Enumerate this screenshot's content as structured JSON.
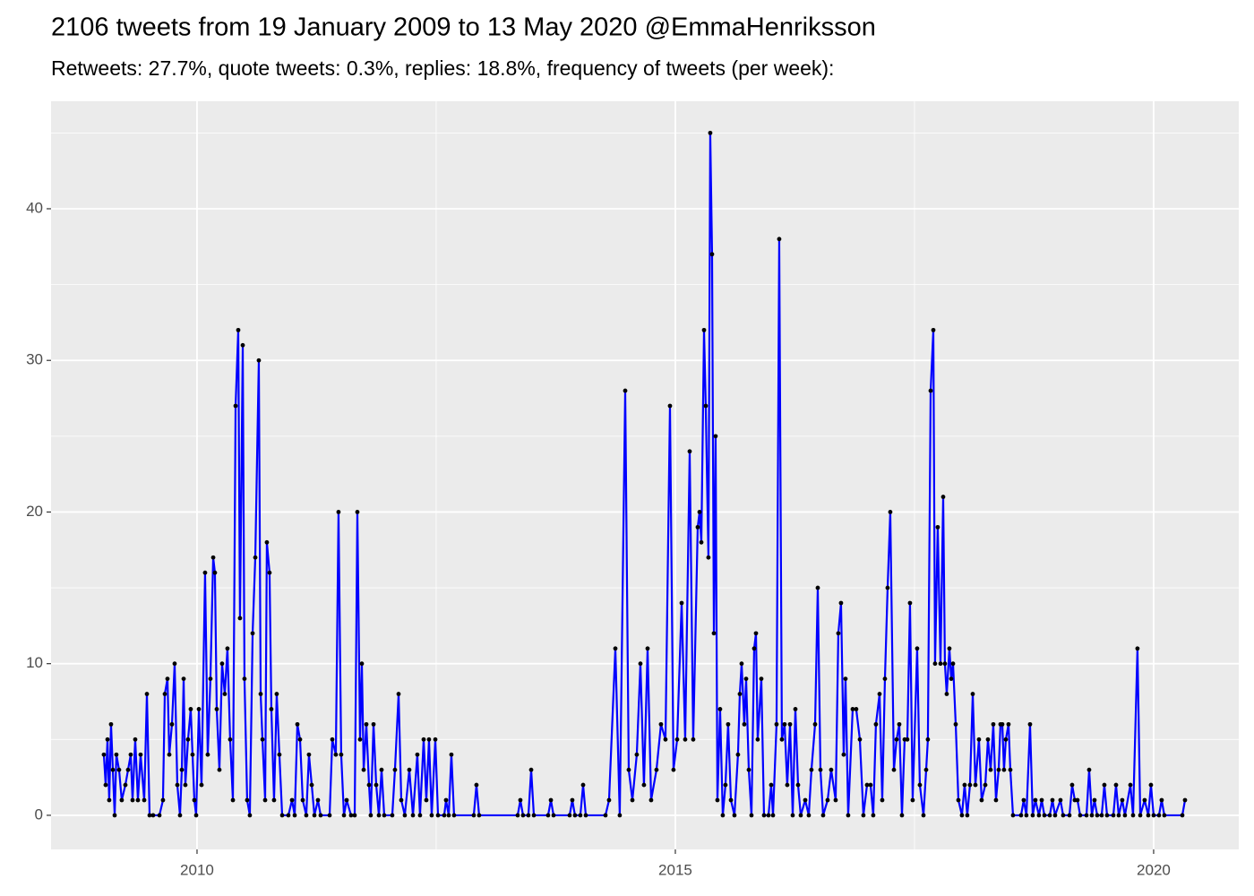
{
  "chart_data": {
    "type": "line",
    "title": "2106 tweets from 19 January 2009 to 13 May 2020 @EmmaHenriksson",
    "subtitle": "Retweets: 27.7%, quote tweets: 0.3%, replies: 18.8%, frequency of tweets (per week):",
    "xlim": [
      2008.474,
      2020.89
    ],
    "xticks": [
      2010,
      2015,
      2020
    ],
    "ylim": [
      -2.25,
      47.09
    ],
    "yticks": [
      0,
      10,
      20,
      30,
      40
    ],
    "grid": true,
    "background": "#ebebeb",
    "marker_color": "#000000",
    "x": [
      2009.026,
      2009.045,
      2009.064,
      2009.082,
      2009.101,
      2009.12,
      2009.139,
      2009.157,
      2009.185,
      2009.213,
      2009.251,
      2009.279,
      2009.307,
      2009.326,
      2009.354,
      2009.382,
      2009.41,
      2009.448,
      2009.476,
      2009.504,
      2009.541,
      2009.607,
      2009.644,
      2009.663,
      2009.691,
      2009.71,
      2009.738,
      2009.766,
      2009.794,
      2009.822,
      2009.841,
      2009.86,
      2009.878,
      2009.906,
      2009.934,
      2009.953,
      2009.972,
      2009.991,
      2010.019,
      2010.047,
      2010.084,
      2010.112,
      2010.14,
      2010.169,
      2010.187,
      2010.206,
      2010.234,
      2010.262,
      2010.29,
      2010.318,
      2010.346,
      2010.375,
      2010.403,
      2010.431,
      2010.449,
      2010.478,
      2010.496,
      2010.524,
      2010.552,
      2010.581,
      2010.609,
      2010.646,
      2010.665,
      2010.684,
      2010.712,
      2010.73,
      2010.758,
      2010.777,
      2010.805,
      2010.833,
      2010.861,
      2010.89,
      2010.955,
      2010.993,
      2011.021,
      2011.049,
      2011.077,
      2011.105,
      2011.142,
      2011.17,
      2011.199,
      2011.227,
      2011.264,
      2011.292,
      2011.386,
      2011.414,
      2011.451,
      2011.479,
      2011.507,
      2011.536,
      2011.564,
      2011.61,
      2011.648,
      2011.676,
      2011.704,
      2011.723,
      2011.742,
      2011.77,
      2011.798,
      2011.816,
      2011.845,
      2011.873,
      2011.901,
      2011.929,
      2011.957,
      2012.041,
      2012.069,
      2012.107,
      2012.135,
      2012.172,
      2012.219,
      2012.257,
      2012.303,
      2012.331,
      2012.369,
      2012.397,
      2012.425,
      2012.453,
      2012.491,
      2012.519,
      2012.584,
      2012.603,
      2012.631,
      2012.659,
      2012.687,
      2012.893,
      2012.921,
      2012.949,
      2013.352,
      2013.38,
      2013.408,
      2013.464,
      2013.493,
      2013.521,
      2013.67,
      2013.699,
      2013.727,
      2013.895,
      2013.923,
      2013.951,
      2014.007,
      2014.036,
      2014.064,
      2014.27,
      2014.307,
      2014.373,
      2014.419,
      2014.476,
      2014.513,
      2014.551,
      2014.597,
      2014.635,
      2014.672,
      2014.71,
      2014.747,
      2014.803,
      2014.85,
      2014.897,
      2014.944,
      2014.981,
      2015.019,
      2015.066,
      2015.103,
      2015.15,
      2015.187,
      2015.234,
      2015.253,
      2015.272,
      2015.3,
      2015.318,
      2015.346,
      2015.365,
      2015.384,
      2015.403,
      2015.421,
      2015.44,
      2015.468,
      2015.496,
      2015.524,
      2015.552,
      2015.581,
      2015.618,
      2015.655,
      2015.674,
      2015.693,
      2015.721,
      2015.74,
      2015.768,
      2015.796,
      2015.824,
      2015.843,
      2015.861,
      2015.899,
      2015.927,
      2015.974,
      2016.002,
      2016.021,
      2016.058,
      2016.086,
      2016.114,
      2016.142,
      2016.17,
      2016.199,
      2016.227,
      2016.255,
      2016.283,
      2016.311,
      2016.358,
      2016.395,
      2016.423,
      2016.461,
      2016.489,
      2016.517,
      2016.545,
      2016.592,
      2016.629,
      2016.676,
      2016.704,
      2016.732,
      2016.76,
      2016.779,
      2016.807,
      2016.854,
      2016.891,
      2016.929,
      2016.966,
      2017.004,
      2017.041,
      2017.069,
      2017.097,
      2017.135,
      2017.163,
      2017.191,
      2017.219,
      2017.247,
      2017.285,
      2017.313,
      2017.341,
      2017.369,
      2017.397,
      2017.425,
      2017.453,
      2017.481,
      2017.528,
      2017.556,
      2017.594,
      2017.622,
      2017.64,
      2017.669,
      2017.697,
      2017.715,
      2017.743,
      2017.772,
      2017.8,
      2017.818,
      2017.837,
      2017.865,
      2017.884,
      2017.903,
      2017.931,
      2017.959,
      2017.996,
      2018.024,
      2018.052,
      2018.08,
      2018.109,
      2018.137,
      2018.174,
      2018.202,
      2018.24,
      2018.268,
      2018.296,
      2018.324,
      2018.352,
      2018.38,
      2018.399,
      2018.418,
      2018.436,
      2018.455,
      2018.483,
      2018.502,
      2018.53,
      2018.614,
      2018.642,
      2018.67,
      2018.708,
      2018.736,
      2018.764,
      2018.801,
      2018.83,
      2018.858,
      2018.914,
      2018.942,
      2018.97,
      2019.026,
      2019.054,
      2019.12,
      2019.148,
      2019.176,
      2019.204,
      2019.232,
      2019.298,
      2019.326,
      2019.354,
      2019.382,
      2019.41,
      2019.457,
      2019.485,
      2019.513,
      2019.579,
      2019.607,
      2019.635,
      2019.672,
      2019.7,
      2019.757,
      2019.785,
      2019.831,
      2019.86,
      2019.906,
      2019.944,
      2019.972,
      2020.0,
      2020.056,
      2020.084,
      2020.112,
      2020.3,
      2020.328
    ],
    "series": [
      {
        "color": "#0000ff",
        "values": [
          4,
          2,
          5,
          1,
          6,
          3,
          0,
          4,
          3,
          1,
          2,
          3,
          4,
          1,
          5,
          1,
          4,
          1,
          8,
          0,
          0,
          0,
          1,
          8,
          9,
          4,
          6,
          10,
          2,
          0,
          3,
          9,
          2,
          5,
          7,
          4,
          1,
          0,
          7,
          2,
          16,
          4,
          9,
          17,
          16,
          7,
          3,
          10,
          8,
          11,
          5,
          1,
          27,
          32,
          13,
          31,
          9,
          1,
          0,
          12,
          17,
          30,
          8,
          5,
          1,
          18,
          16,
          7,
          1,
          8,
          4,
          0,
          0,
          1,
          0,
          6,
          5,
          1,
          0,
          4,
          2,
          0,
          1,
          0,
          0,
          5,
          4,
          20,
          4,
          0,
          1,
          0,
          0,
          20,
          5,
          10,
          3,
          6,
          2,
          0,
          6,
          2,
          0,
          3,
          0,
          0,
          3,
          8,
          1,
          0,
          3,
          0,
          4,
          0,
          5,
          1,
          5,
          0,
          5,
          0,
          0,
          1,
          0,
          4,
          0,
          0,
          2,
          0,
          0,
          1,
          0,
          0,
          3,
          0,
          0,
          1,
          0,
          0,
          1,
          0,
          0,
          2,
          0,
          0,
          1,
          11,
          0,
          28,
          3,
          1,
          4,
          10,
          2,
          11,
          1,
          3,
          6,
          5,
          27,
          3,
          5,
          14,
          5,
          24,
          5,
          19,
          20,
          18,
          32,
          27,
          17,
          45,
          37,
          12,
          25,
          1,
          7,
          0,
          2,
          6,
          1,
          0,
          4,
          8,
          10,
          6,
          9,
          3,
          0,
          11,
          12,
          5,
          9,
          0,
          0,
          2,
          0,
          6,
          38,
          5,
          6,
          2,
          6,
          0,
          7,
          2,
          0,
          1,
          0,
          3,
          6,
          15,
          3,
          0,
          1,
          3,
          1,
          12,
          14,
          4,
          9,
          0,
          7,
          7,
          5,
          0,
          2,
          2,
          0,
          6,
          8,
          1,
          9,
          15,
          20,
          3,
          5,
          6,
          0,
          5,
          5,
          14,
          1,
          11,
          2,
          0,
          3,
          5,
          28,
          32,
          10,
          19,
          10,
          21,
          10,
          8,
          11,
          9,
          10,
          6,
          1,
          0,
          2,
          0,
          2,
          8,
          2,
          5,
          1,
          2,
          5,
          3,
          6,
          1,
          3,
          6,
          6,
          3,
          5,
          6,
          3,
          0,
          0,
          1,
          0,
          6,
          0,
          1,
          0,
          1,
          0,
          0,
          1,
          0,
          1,
          0,
          0,
          2,
          1,
          1,
          0,
          0,
          3,
          0,
          1,
          0,
          0,
          2,
          0,
          0,
          2,
          0,
          1,
          0,
          2,
          0,
          11,
          0,
          1,
          0,
          2,
          0,
          0,
          1,
          0,
          0,
          1
        ]
      }
    ]
  }
}
